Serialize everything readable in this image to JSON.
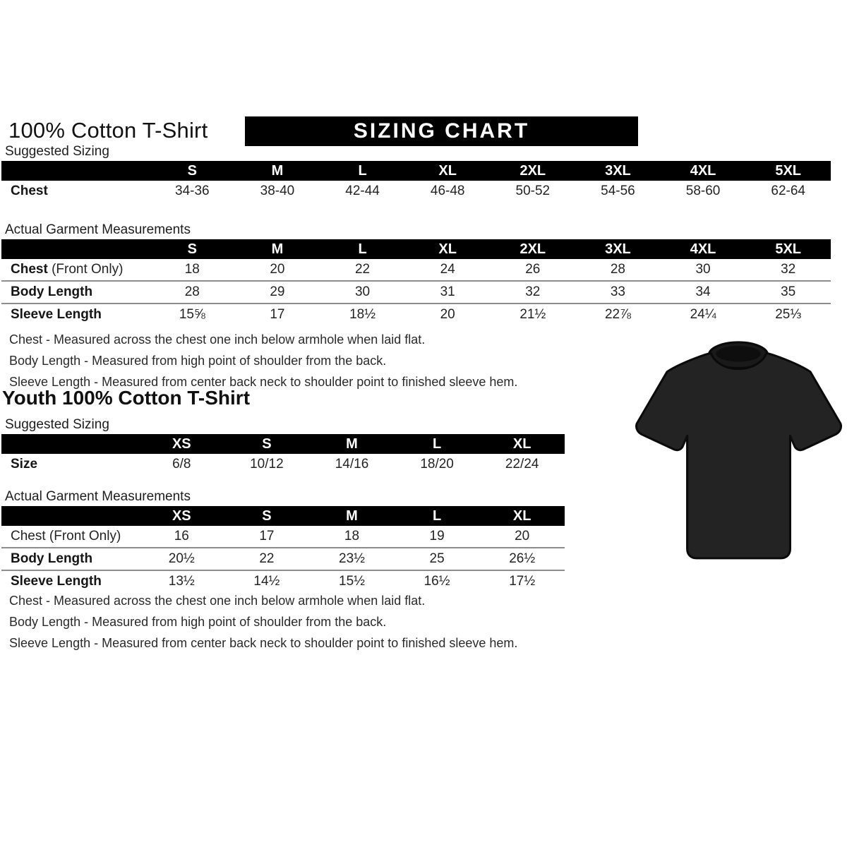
{
  "header": {
    "title": "100% Cotton T-Shirt",
    "banner": "SIZING CHART"
  },
  "adult": {
    "suggested_label": "Suggested Sizing",
    "suggested": {
      "columns": [
        "S",
        "M",
        "L",
        "XL",
        "2XL",
        "3XL",
        "4XL",
        "5XL"
      ],
      "rows": [
        {
          "label": "Chest",
          "suffix": "",
          "bold": true,
          "values": [
            "34-36",
            "38-40",
            "42-44",
            "46-48",
            "50-52",
            "54-56",
            "58-60",
            "62-64"
          ]
        }
      ]
    },
    "actual_label": "Actual Garment Measurements",
    "actual": {
      "columns": [
        "S",
        "M",
        "L",
        "XL",
        "2XL",
        "3XL",
        "4XL",
        "5XL"
      ],
      "rows": [
        {
          "label": "Chest",
          "suffix": " (Front Only)",
          "bold": true,
          "values": [
            "18",
            "20",
            "22",
            "24",
            "26",
            "28",
            "30",
            "32"
          ]
        },
        {
          "label": "Body Length",
          "suffix": "",
          "bold": true,
          "values": [
            "28",
            "29",
            "30",
            "31",
            "32",
            "33",
            "34",
            "35"
          ]
        },
        {
          "label": "Sleeve Length",
          "suffix": "",
          "bold": true,
          "values": [
            "15⅝",
            "17",
            "18½",
            "20",
            "21½",
            "22⅞",
            "24¼",
            "25⅓"
          ]
        }
      ]
    },
    "notes": [
      "Chest - Measured across the chest one inch below armhole when laid flat.",
      "Body Length - Measured from high point of shoulder from the back.",
      "Sleeve Length - Measured from center back neck to shoulder point to finished sleeve hem."
    ]
  },
  "youth": {
    "title": "Youth 100% Cotton T-Shirt",
    "suggested_label": "Suggested Sizing",
    "suggested": {
      "columns": [
        "XS",
        "S",
        "M",
        "L",
        "XL"
      ],
      "rows": [
        {
          "label": "Size",
          "suffix": "",
          "bold": true,
          "values": [
            "6/8",
            "10/12",
            "14/16",
            "18/20",
            "22/24"
          ]
        }
      ]
    },
    "actual_label": "Actual Garment Measurements",
    "actual": {
      "columns": [
        "XS",
        "S",
        "M",
        "L",
        "XL"
      ],
      "rows": [
        {
          "label": "Chest",
          "suffix": " (Front Only)",
          "bold": false,
          "values": [
            "16",
            "17",
            "18",
            "19",
            "20"
          ]
        },
        {
          "label": "Body Length",
          "suffix": "",
          "bold": true,
          "values": [
            "20½",
            "22",
            "23½",
            "25",
            "26½"
          ]
        },
        {
          "label": "Sleeve Length",
          "suffix": "",
          "bold": true,
          "values": [
            "13½",
            "14½",
            "15½",
            "16½",
            "17½"
          ]
        }
      ]
    },
    "notes": [
      "Chest - Measured across the chest one inch below armhole when laid flat.",
      "Body Length - Measured from high point of shoulder from the back.",
      "Sleeve Length - Measured from center back neck to shoulder point to finished sleeve hem."
    ]
  },
  "tshirt": {
    "label": "black-cotton-tshirt-photo",
    "body_color": "#232323",
    "collar_color": "#1a1a1a",
    "neck_hole_color": "#0e0e0e",
    "outline_color": "#0a0a0a"
  },
  "colors": {
    "bar_background": "#000000",
    "bar_text": "#ffffff",
    "row_separator": "#8d8d8d",
    "text": "#1f1f1f"
  }
}
